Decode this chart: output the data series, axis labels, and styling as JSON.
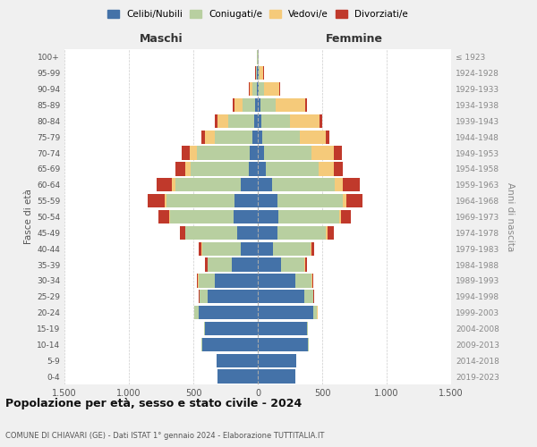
{
  "age_groups": [
    "0-4",
    "5-9",
    "10-14",
    "15-19",
    "20-24",
    "25-29",
    "30-34",
    "35-39",
    "40-44",
    "45-49",
    "50-54",
    "55-59",
    "60-64",
    "65-69",
    "70-74",
    "75-79",
    "80-84",
    "85-89",
    "90-94",
    "95-99",
    "100+"
  ],
  "birth_years": [
    "2019-2023",
    "2014-2018",
    "2009-2013",
    "2004-2008",
    "1999-2003",
    "1994-1998",
    "1989-1993",
    "1984-1988",
    "1979-1983",
    "1974-1978",
    "1969-1973",
    "1964-1968",
    "1959-1963",
    "1954-1958",
    "1949-1953",
    "1944-1948",
    "1939-1943",
    "1934-1938",
    "1929-1933",
    "1924-1928",
    "≤ 1923"
  ],
  "male": {
    "celibi": [
      310,
      320,
      430,
      410,
      460,
      390,
      330,
      200,
      130,
      160,
      190,
      180,
      130,
      70,
      60,
      40,
      30,
      20,
      10,
      4,
      2
    ],
    "coniugati": [
      0,
      0,
      5,
      10,
      30,
      60,
      130,
      190,
      300,
      400,
      490,
      530,
      510,
      450,
      410,
      290,
      200,
      100,
      30,
      8,
      2
    ],
    "vedovi": [
      0,
      0,
      0,
      0,
      2,
      2,
      2,
      2,
      5,
      5,
      10,
      15,
      25,
      40,
      60,
      80,
      80,
      60,
      25,
      5,
      1
    ],
    "divorziati": [
      0,
      0,
      0,
      0,
      2,
      5,
      10,
      20,
      20,
      40,
      80,
      130,
      120,
      80,
      60,
      30,
      25,
      15,
      5,
      2,
      0
    ]
  },
  "female": {
    "nubili": [
      290,
      300,
      390,
      380,
      430,
      360,
      290,
      180,
      120,
      150,
      160,
      150,
      110,
      60,
      50,
      35,
      30,
      20,
      10,
      5,
      2
    ],
    "coniugate": [
      0,
      0,
      5,
      10,
      30,
      70,
      130,
      180,
      290,
      380,
      470,
      510,
      490,
      410,
      370,
      290,
      220,
      120,
      40,
      10,
      2
    ],
    "vedove": [
      0,
      0,
      0,
      0,
      2,
      2,
      2,
      5,
      5,
      10,
      15,
      30,
      60,
      120,
      170,
      200,
      230,
      230,
      120,
      30,
      2
    ],
    "divorziate": [
      0,
      0,
      0,
      0,
      2,
      5,
      10,
      15,
      20,
      50,
      80,
      120,
      130,
      70,
      60,
      30,
      20,
      10,
      5,
      2,
      0
    ]
  },
  "colors": {
    "celibi": "#4472a8",
    "coniugati": "#b8cfa0",
    "vedovi": "#f5ca7a",
    "divorziati": "#c0392b"
  },
  "xlim": 1500,
  "title": "Popolazione per età, sesso e stato civile - 2024",
  "subtitle": "COMUNE DI CHIAVARI (GE) - Dati ISTAT 1° gennaio 2024 - Elaborazione TUTTITALIA.IT",
  "ylabel_left": "Fasce di età",
  "ylabel_right": "Anni di nascita",
  "xlabel_left": "Maschi",
  "xlabel_right": "Femmine",
  "bg_color": "#f0f0f0",
  "plot_bg_color": "#ffffff"
}
